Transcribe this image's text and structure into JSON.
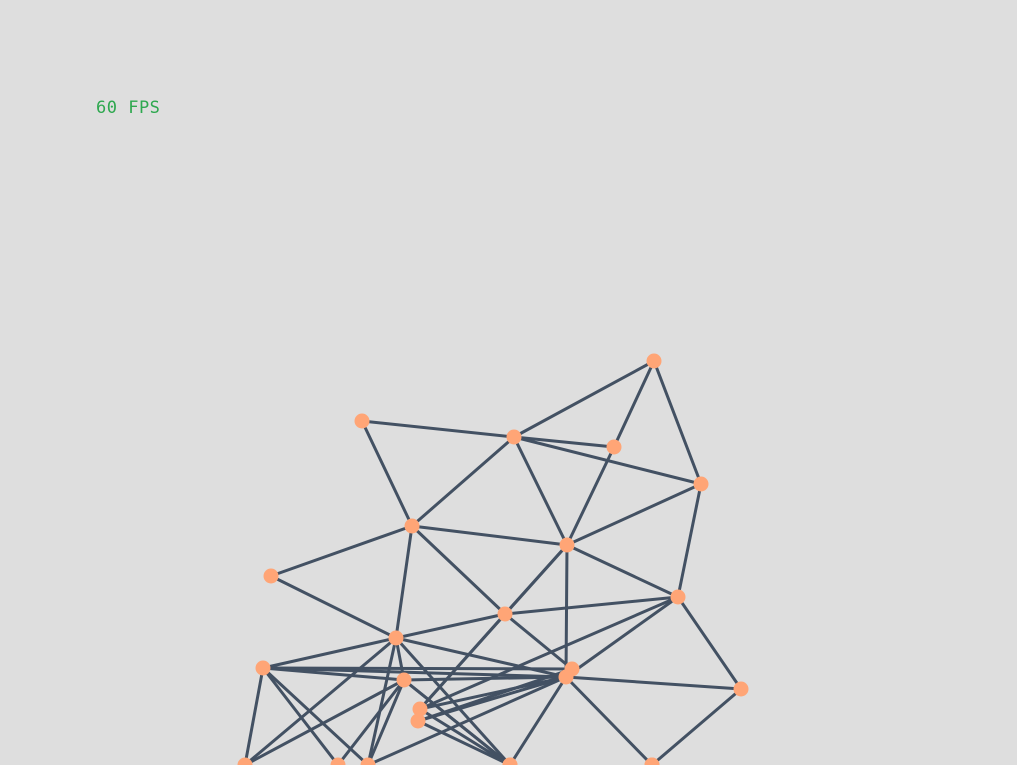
{
  "fps_counter": {
    "label": "60 FPS",
    "value": 60,
    "unit": "FPS",
    "color": "#2ea84f"
  },
  "theme": {
    "background": "#dedede",
    "edge_color": "#435163",
    "node_color": "#ffa576"
  },
  "graph": {
    "nodes": [
      {
        "id": "n1"
      },
      {
        "id": "n2"
      },
      {
        "id": "n3"
      },
      {
        "id": "n4"
      },
      {
        "id": "n5"
      },
      {
        "id": "n6"
      },
      {
        "id": "n7"
      },
      {
        "id": "n8"
      },
      {
        "id": "n9"
      },
      {
        "id": "n10"
      },
      {
        "id": "n11"
      },
      {
        "id": "n12"
      },
      {
        "id": "n13"
      },
      {
        "id": "n14"
      },
      {
        "id": "n15"
      },
      {
        "id": "n16"
      },
      {
        "id": "n17"
      },
      {
        "id": "n18"
      },
      {
        "id": "n19"
      },
      {
        "id": "n20"
      },
      {
        "id": "n21"
      },
      {
        "id": "n22"
      },
      {
        "id": "n23"
      },
      {
        "id": "n24"
      },
      {
        "id": "n25"
      }
    ],
    "edges": [
      [
        "n1",
        "n3"
      ],
      [
        "n1",
        "n4"
      ],
      [
        "n1",
        "n5"
      ],
      [
        "n2",
        "n3"
      ],
      [
        "n2",
        "n6"
      ],
      [
        "n3",
        "n4"
      ],
      [
        "n3",
        "n5"
      ],
      [
        "n3",
        "n6"
      ],
      [
        "n3",
        "n7"
      ],
      [
        "n4",
        "n7"
      ],
      [
        "n5",
        "n7"
      ],
      [
        "n5",
        "n9"
      ],
      [
        "n6",
        "n7"
      ],
      [
        "n6",
        "n8"
      ],
      [
        "n6",
        "n10"
      ],
      [
        "n6",
        "n11"
      ],
      [
        "n7",
        "n9"
      ],
      [
        "n7",
        "n10"
      ],
      [
        "n7",
        "n16"
      ],
      [
        "n7",
        "n17"
      ],
      [
        "n8",
        "n11"
      ],
      [
        "n9",
        "n10"
      ],
      [
        "n9",
        "n16"
      ],
      [
        "n9",
        "n17"
      ],
      [
        "n9",
        "n14"
      ],
      [
        "n10",
        "n11"
      ],
      [
        "n10",
        "n15"
      ],
      [
        "n10",
        "n17"
      ],
      [
        "n11",
        "n12"
      ],
      [
        "n11",
        "n16"
      ],
      [
        "n11",
        "n20"
      ],
      [
        "n11",
        "n19"
      ],
      [
        "n11",
        "n13"
      ],
      [
        "n11",
        "n22"
      ],
      [
        "n12",
        "n13"
      ],
      [
        "n12",
        "n15"
      ],
      [
        "n12",
        "n20"
      ],
      [
        "n12",
        "n21"
      ],
      [
        "n12",
        "n16"
      ],
      [
        "n12",
        "n22"
      ],
      [
        "n13",
        "n16"
      ],
      [
        "n13",
        "n21"
      ],
      [
        "n13",
        "n23"
      ],
      [
        "n13",
        "n19"
      ],
      [
        "n13",
        "n22"
      ],
      [
        "n13",
        "n20"
      ],
      [
        "n14",
        "n16"
      ],
      [
        "n14",
        "n25"
      ],
      [
        "n15",
        "n16"
      ],
      [
        "n15",
        "n18"
      ],
      [
        "n16",
        "n17"
      ],
      [
        "n16",
        "n18"
      ],
      [
        "n16",
        "n19"
      ],
      [
        "n16",
        "n25"
      ],
      [
        "n16",
        "n22"
      ],
      [
        "n17",
        "n19"
      ],
      [
        "n17",
        "n18"
      ],
      [
        "n18",
        "n19"
      ]
    ]
  }
}
